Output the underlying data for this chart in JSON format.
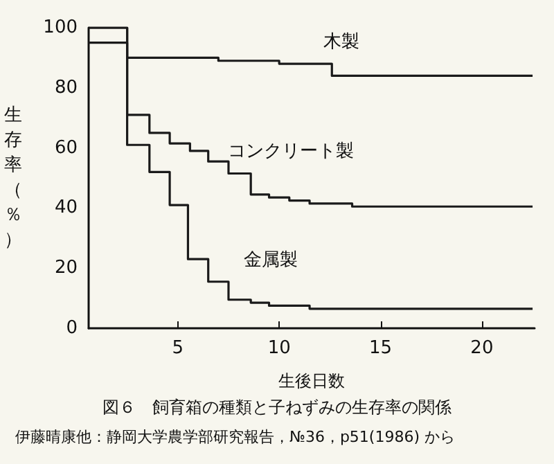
{
  "chart_data": {
    "type": "step",
    "title": "図６　飼育箱の種類と子ねずみの生存率の関係",
    "xlabel": "生後日数",
    "ylabel": "生存率（％）",
    "annotations": [
      "伊藤晴康他：静岡大学農学部研究報告，№36，p51(1986) から"
    ],
    "xlim": [
      0.6,
      22.6
    ],
    "xticks": [
      5,
      10,
      15,
      20
    ],
    "ylim": [
      0,
      100
    ],
    "yticks": [
      0,
      20,
      40,
      60,
      80,
      100
    ],
    "grid": false,
    "legend": false,
    "marker": "none",
    "line_style": "solid",
    "series": [
      {
        "name": "木製",
        "color": "#1a1a1a",
        "x": [
          0.6,
          2.5,
          7,
          10,
          12.6,
          22.5
        ],
        "values": [
          95,
          90,
          89,
          88,
          84,
          84
        ]
      },
      {
        "name": "コンクリート製",
        "color": "#1a1a1a",
        "x": [
          0.6,
          2.5,
          3.6,
          4.6,
          5.6,
          6.5,
          7.5,
          8.6,
          9.5,
          10.5,
          11.5,
          13.6,
          22.5
        ],
        "values": [
          100,
          71,
          65,
          61.5,
          59,
          55.5,
          51.5,
          44.5,
          43.5,
          42.5,
          41.5,
          40.5,
          40.5
        ]
      },
      {
        "name": "金属製",
        "color": "#1a1a1a",
        "x": [
          0.6,
          2.5,
          3.6,
          4.6,
          5.5,
          6.5,
          7.5,
          8.6,
          9.5,
          11.5,
          22.5
        ],
        "values": [
          100,
          61,
          52,
          41,
          23,
          15.5,
          9.5,
          8.5,
          7.5,
          6.5,
          6.5
        ]
      }
    ]
  }
}
